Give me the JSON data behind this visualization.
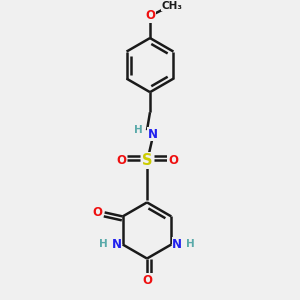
{
  "bg_color": "#f0f0f0",
  "bond_color": "#1a1a1a",
  "bond_width": 1.8,
  "atom_colors": {
    "C": "#1a1a1a",
    "H": "#5aaaaa",
    "N": "#2020ee",
    "O": "#ee1010",
    "S": "#cccc00"
  },
  "font_size": 8.5,
  "fig_size": [
    3.0,
    3.0
  ],
  "dpi": 100,
  "xlim": [
    -1.0,
    1.0
  ],
  "ylim": [
    -1.55,
    1.35
  ]
}
